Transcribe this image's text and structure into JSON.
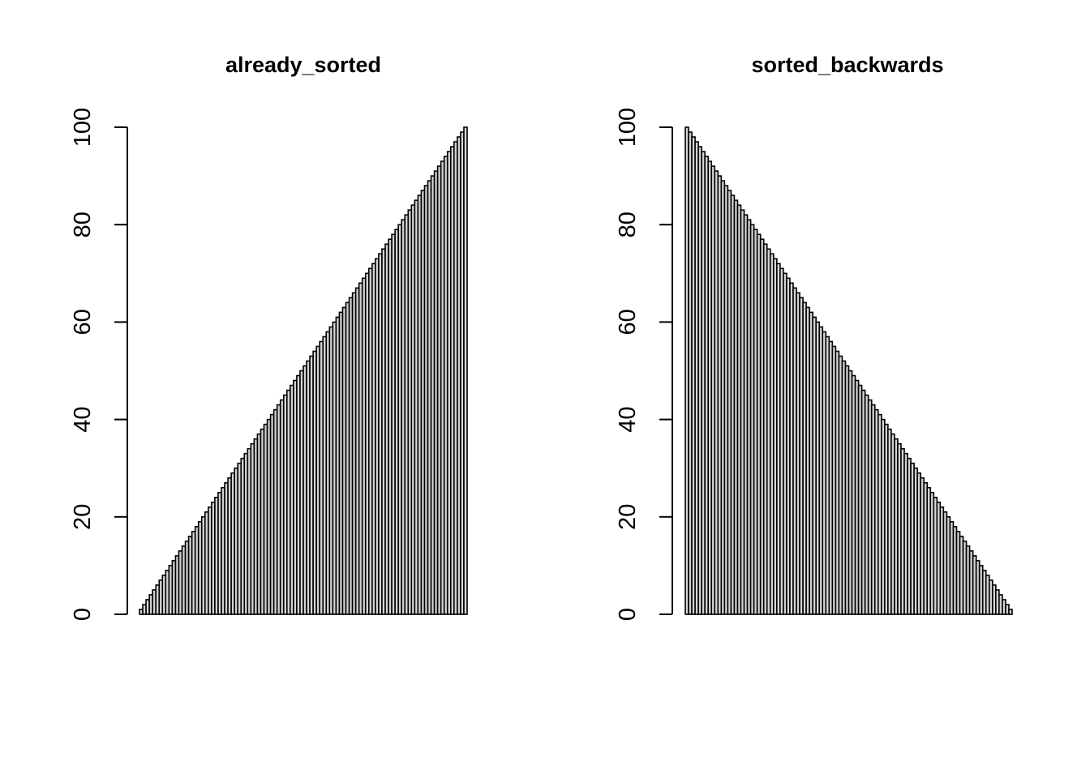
{
  "chart_data": [
    {
      "type": "bar",
      "title": "already_sorted",
      "xlabel": "",
      "ylabel": "",
      "ylim": [
        0,
        100
      ],
      "yticks": [
        0,
        20,
        40,
        60,
        80,
        100
      ],
      "tick_labels": [
        "0",
        "20",
        "40",
        "60",
        "80",
        "100"
      ],
      "bar_fill": "#d3d3d3",
      "bar_border": "#000000",
      "values": [
        1,
        2,
        3,
        4,
        5,
        6,
        7,
        8,
        9,
        10,
        11,
        12,
        13,
        14,
        15,
        16,
        17,
        18,
        19,
        20,
        21,
        22,
        23,
        24,
        25,
        26,
        27,
        28,
        29,
        30,
        31,
        32,
        33,
        34,
        35,
        36,
        37,
        38,
        39,
        40,
        41,
        42,
        43,
        44,
        45,
        46,
        47,
        48,
        49,
        50,
        51,
        52,
        53,
        54,
        55,
        56,
        57,
        58,
        59,
        60,
        61,
        62,
        63,
        64,
        65,
        66,
        67,
        68,
        69,
        70,
        71,
        72,
        73,
        74,
        75,
        76,
        77,
        78,
        79,
        80,
        81,
        82,
        83,
        84,
        85,
        86,
        87,
        88,
        89,
        90,
        91,
        92,
        93,
        94,
        95,
        96,
        97,
        98,
        99,
        100
      ]
    },
    {
      "type": "bar",
      "title": "sorted_backwards",
      "xlabel": "",
      "ylabel": "",
      "ylim": [
        0,
        100
      ],
      "yticks": [
        0,
        20,
        40,
        60,
        80,
        100
      ],
      "tick_labels": [
        "0",
        "20",
        "40",
        "60",
        "80",
        "100"
      ],
      "bar_fill": "#d3d3d3",
      "bar_border": "#000000",
      "values": [
        100,
        99,
        98,
        97,
        96,
        95,
        94,
        93,
        92,
        91,
        90,
        89,
        88,
        87,
        86,
        85,
        84,
        83,
        82,
        81,
        80,
        79,
        78,
        77,
        76,
        75,
        74,
        73,
        72,
        71,
        70,
        69,
        68,
        67,
        66,
        65,
        64,
        63,
        62,
        61,
        60,
        59,
        58,
        57,
        56,
        55,
        54,
        53,
        52,
        51,
        50,
        49,
        48,
        47,
        46,
        45,
        44,
        43,
        42,
        41,
        40,
        39,
        38,
        37,
        36,
        35,
        34,
        33,
        32,
        31,
        30,
        29,
        28,
        27,
        26,
        25,
        24,
        23,
        22,
        21,
        20,
        19,
        18,
        17,
        16,
        15,
        14,
        13,
        12,
        11,
        10,
        9,
        8,
        7,
        6,
        5,
        4,
        3,
        2,
        1
      ]
    }
  ]
}
